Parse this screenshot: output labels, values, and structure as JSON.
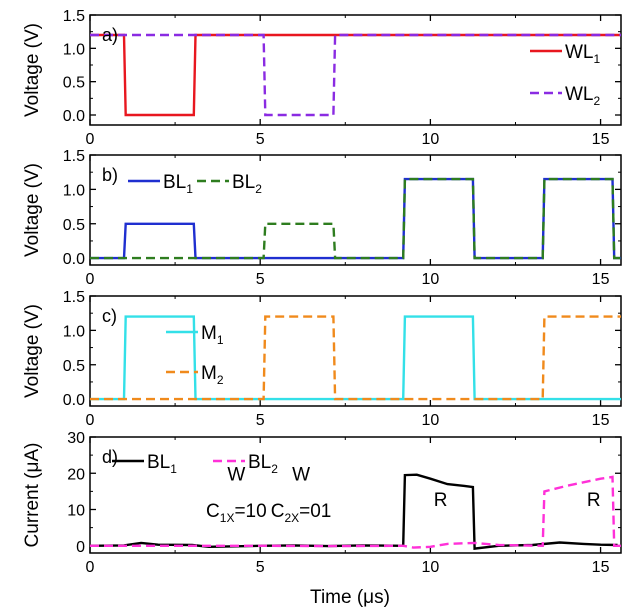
{
  "figure": {
    "xlabel": "Time (μs)",
    "x_ticks": [
      "0",
      "5",
      "10",
      "15"
    ]
  },
  "chart_data": [
    {
      "type": "line",
      "panel_label": "a)",
      "ylabel": "Voltage (V)",
      "xlim": [
        0,
        15.6
      ],
      "ylim": [
        -0.15,
        1.5
      ],
      "y_ticks": [
        0.0,
        0.5,
        1.0,
        1.5
      ],
      "y_tick_labels": [
        "0.0",
        "0.5",
        "1.0",
        "1.5"
      ],
      "legend_position": "right",
      "series": [
        {
          "name": "WL",
          "sub": "1",
          "color": "#e8171f",
          "dash": "solid",
          "x": [
            0,
            1.0,
            1.05,
            3.05,
            3.1,
            15.6
          ],
          "y": [
            1.2,
            1.2,
            0.0,
            0.0,
            1.2,
            1.2
          ]
        },
        {
          "name": "WL",
          "sub": "2",
          "color": "#8a2be2",
          "dash": "dashed",
          "x": [
            0,
            5.1,
            5.15,
            7.15,
            7.2,
            15.6
          ],
          "y": [
            1.2,
            1.2,
            0.0,
            0.0,
            1.2,
            1.2
          ]
        }
      ]
    },
    {
      "type": "line",
      "panel_label": "b)",
      "ylabel": "Voltage (V)",
      "xlim": [
        0,
        15.6
      ],
      "ylim": [
        -0.1,
        1.5
      ],
      "y_ticks": [
        0.0,
        0.5,
        1.0,
        1.5
      ],
      "y_tick_labels": [
        "0.0",
        "0.5",
        "1.0",
        "1.5"
      ],
      "legend_position": "top-left",
      "series": [
        {
          "name": "BL",
          "sub": "1",
          "color": "#1f2fd0",
          "dash": "solid",
          "x": [
            0,
            1.0,
            1.05,
            3.05,
            3.1,
            9.2,
            9.25,
            11.25,
            11.3,
            13.3,
            13.35,
            15.35,
            15.4,
            15.6
          ],
          "y": [
            0.0,
            0.0,
            0.5,
            0.5,
            0.0,
            0.0,
            1.15,
            1.15,
            0.0,
            0.0,
            1.15,
            1.15,
            0.0,
            0.0
          ]
        },
        {
          "name": "BL",
          "sub": "2",
          "color": "#2e7d1f",
          "dash": "dashed",
          "x": [
            0,
            5.1,
            5.15,
            7.15,
            7.2,
            9.2,
            9.25,
            11.25,
            11.3,
            13.3,
            13.35,
            15.35,
            15.4,
            15.6
          ],
          "y": [
            0.0,
            0.0,
            0.5,
            0.5,
            0.0,
            0.0,
            1.15,
            1.15,
            0.0,
            0.0,
            1.15,
            1.15,
            0.0,
            0.0
          ]
        }
      ]
    },
    {
      "type": "line",
      "panel_label": "c)",
      "ylabel": "Voltage (V)",
      "xlim": [
        0,
        15.6
      ],
      "ylim": [
        -0.1,
        1.5
      ],
      "y_ticks": [
        0.0,
        0.5,
        1.0,
        1.5
      ],
      "y_tick_labels": [
        "0.0",
        "0.5",
        "1.0",
        "1.5"
      ],
      "legend_position": "top-left",
      "series": [
        {
          "name": "M",
          "sub": "1",
          "color": "#33e0e8",
          "dash": "solid",
          "x": [
            0,
            1.0,
            1.05,
            3.05,
            3.1,
            9.2,
            9.25,
            11.25,
            11.3,
            15.6
          ],
          "y": [
            0.0,
            0.0,
            1.2,
            1.2,
            0.0,
            0.0,
            1.2,
            1.2,
            0.0,
            0.0
          ]
        },
        {
          "name": "M",
          "sub": "2",
          "color": "#f08a1c",
          "dash": "dashed",
          "x": [
            0,
            5.1,
            5.15,
            7.15,
            7.2,
            13.3,
            13.35,
            15.6
          ],
          "y": [
            0.0,
            0.0,
            1.2,
            1.2,
            0.0,
            0.0,
            1.2,
            1.2
          ]
        }
      ]
    },
    {
      "type": "line",
      "panel_label": "d)",
      "ylabel": "Current (μA)",
      "xlim": [
        0,
        15.6
      ],
      "ylim": [
        -2,
        30
      ],
      "y_ticks": [
        0,
        10,
        20,
        30
      ],
      "y_tick_labels": [
        "0",
        "10",
        "20",
        "30"
      ],
      "legend_position": "top-left",
      "series": [
        {
          "name": "BL",
          "sub": "1",
          "color": "#000000",
          "dash": "solid",
          "x": [
            0,
            1.0,
            1.5,
            2.0,
            3.0,
            3.5,
            5.0,
            6.0,
            7.0,
            8.0,
            9.2,
            9.25,
            9.6,
            10.0,
            10.5,
            11.0,
            11.25,
            11.3,
            12.0,
            13.0,
            13.8,
            14.5,
            15.0,
            15.5
          ],
          "y": [
            0.0,
            0.1,
            0.8,
            0.3,
            0.2,
            -0.3,
            0.0,
            0.1,
            -0.1,
            0.1,
            0.0,
            19.5,
            19.6,
            18.5,
            17.0,
            16.5,
            16.2,
            -0.8,
            0.0,
            0.2,
            0.9,
            0.5,
            0.3,
            0.2
          ]
        },
        {
          "name": "BL",
          "sub": "2",
          "color": "#ff30d8",
          "dash": "dashed",
          "x": [
            0,
            5.1,
            7.2,
            9.2,
            9.5,
            10.0,
            10.5,
            11.3,
            12.0,
            13.3,
            13.35,
            14.0,
            15.0,
            15.35,
            15.4,
            15.6
          ],
          "y": [
            0.0,
            0.0,
            -0.1,
            0.0,
            -0.5,
            -0.3,
            0.5,
            0.8,
            0.2,
            0.0,
            15.0,
            16.5,
            18.5,
            19.0,
            0.0,
            0.0
          ]
        }
      ],
      "annotations": [
        {
          "id": "w1",
          "text": "W",
          "x": 4.3,
          "y": 18.0
        },
        {
          "id": "c1",
          "text": "C",
          "sub": "1X",
          "suffix": "=10",
          "x": 4.3,
          "y": 8.0
        },
        {
          "id": "w2",
          "text": "W",
          "x": 6.2,
          "y": 18.0
        },
        {
          "id": "c2",
          "text": "C",
          "sub": "2X",
          "suffix": "=01",
          "x": 6.2,
          "y": 8.0
        },
        {
          "id": "r1",
          "text": "R",
          "x": 10.3,
          "y": 11.0
        },
        {
          "id": "r2",
          "text": "R",
          "x": 14.8,
          "y": 11.0
        }
      ]
    }
  ]
}
